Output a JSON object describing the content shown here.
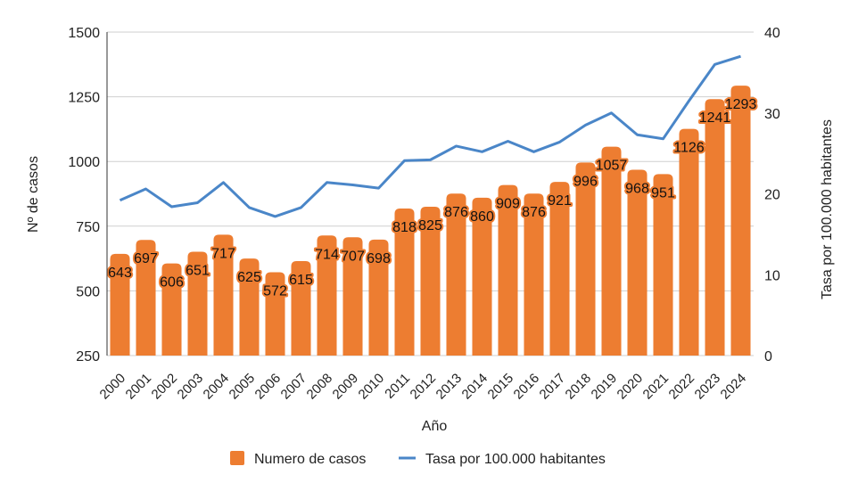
{
  "chart_data": {
    "type": "bar+line",
    "xlabel": "Año",
    "ylabel": "Nº de casos",
    "y2label": "Tasa por 100.000 habitantes",
    "ylim": [
      250,
      1500
    ],
    "yticks": [
      250,
      500,
      750,
      1000,
      1250,
      1500
    ],
    "y2lim": [
      0,
      40
    ],
    "y2ticks": [
      0,
      10,
      20,
      30,
      40
    ],
    "grid": true,
    "legend_position": "bottom",
    "categories": [
      "2000",
      "2001",
      "2002",
      "2003",
      "2004",
      "2005",
      "2006",
      "2007",
      "2008",
      "2009",
      "2010",
      "2011",
      "2012",
      "2013",
      "2014",
      "2015",
      "2016",
      "2017",
      "2018",
      "2019",
      "2020",
      "2021",
      "2022",
      "2023",
      "2024"
    ],
    "series": [
      {
        "name": "Numero de casos",
        "type": "bar",
        "axis": "left",
        "color": "#ed7d31",
        "values": [
          643,
          697,
          606,
          651,
          717,
          625,
          572,
          615,
          714,
          707,
          698,
          818,
          825,
          876,
          860,
          909,
          876,
          921,
          996,
          1057,
          968,
          951,
          1126,
          1241,
          1293
        ]
      },
      {
        "name": "Tasa por 100.000 habitantes",
        "type": "line",
        "axis": "right",
        "color": "#4a86c8",
        "values": [
          19.2,
          20.6,
          18.4,
          18.9,
          21.4,
          18.3,
          17.2,
          18.3,
          21.4,
          21.1,
          20.7,
          24.1,
          24.2,
          25.9,
          25.2,
          26.5,
          25.2,
          26.4,
          28.5,
          30.0,
          27.3,
          26.8,
          31.5,
          36.0,
          37.0
        ]
      }
    ]
  }
}
